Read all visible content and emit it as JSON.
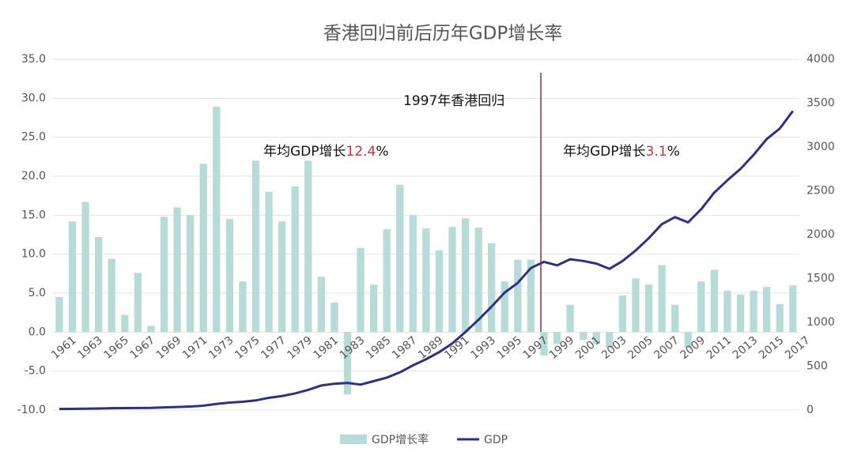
{
  "chart_data": {
    "type": "bar_line",
    "title": "香港回归前后历年GDP增长率",
    "categories": [
      "1961",
      null,
      "1963",
      null,
      "1965",
      null,
      "1967",
      null,
      "1969",
      null,
      "1971",
      null,
      "1973",
      null,
      "1975",
      null,
      "1977",
      null,
      "1979",
      null,
      "1981",
      null,
      "1983",
      null,
      "1985",
      null,
      "1987",
      null,
      "1989",
      null,
      "1991",
      null,
      "1993",
      null,
      "1995",
      null,
      "1997",
      null,
      "1999",
      null,
      "2001",
      null,
      "2003",
      null,
      "2005",
      null,
      "2007",
      null,
      "2009",
      null,
      "2011",
      null,
      "2013",
      null,
      "2015",
      null,
      "2017"
    ],
    "series": [
      {
        "name": "GDP增长率",
        "type": "bar",
        "color": "#b7dbd7",
        "values": [
          4.5,
          14.2,
          16.7,
          12.2,
          9.4,
          2.2,
          7.6,
          0.8,
          14.8,
          16.0,
          15.0,
          21.6,
          28.9,
          14.5,
          6.5,
          22.0,
          18.0,
          14.2,
          18.7,
          22.0,
          7.1,
          3.8,
          -8.0,
          10.8,
          6.1,
          13.2,
          18.9,
          15.0,
          13.3,
          10.5,
          13.5,
          14.6,
          13.4,
          11.4,
          6.5,
          9.3,
          9.3,
          -3.0,
          -1.5,
          3.5,
          -1.0,
          -1.5,
          -2.0,
          4.7,
          6.9,
          6.1,
          8.6,
          3.5,
          -2.0,
          6.5,
          8.0,
          5.3,
          4.8,
          5.3,
          5.8,
          3.6,
          6.0
        ]
      },
      {
        "name": "GDP",
        "type": "line",
        "axis": "y2",
        "color": "#2e3182",
        "values": [
          12,
          14,
          16,
          18,
          21,
          22,
          24,
          25,
          30,
          35,
          40,
          50,
          70,
          85,
          95,
          110,
          140,
          160,
          190,
          230,
          280,
          300,
          310,
          290,
          330,
          370,
          430,
          510,
          580,
          660,
          760,
          890,
          1030,
          1180,
          1340,
          1450,
          1620,
          1690,
          1650,
          1720,
          1700,
          1670,
          1610,
          1700,
          1820,
          1960,
          2120,
          2200,
          2140,
          2290,
          2480,
          2620,
          2750,
          2910,
          3090,
          3210,
          3410
        ]
      }
    ],
    "ylim": [
      -10,
      35
    ],
    "yticks": [
      {
        "value": -10,
        "label": "-10.0"
      },
      {
        "value": -5,
        "label": "-5.0"
      },
      {
        "value": 0,
        "label": "0.0"
      },
      {
        "value": 5,
        "label": "5.0"
      },
      {
        "value": 10,
        "label": "10.0"
      },
      {
        "value": 15,
        "label": "15.0"
      },
      {
        "value": 20,
        "label": "20.0"
      },
      {
        "value": 25,
        "label": "25.0"
      },
      {
        "value": 30,
        "label": "30.0"
      },
      {
        "value": 35,
        "label": "35.0"
      }
    ],
    "y2lim": [
      0,
      4000
    ],
    "y2ticks": [
      0,
      500,
      1000,
      1500,
      2000,
      2500,
      3000,
      3500,
      4000
    ],
    "grid": true,
    "annotations": {
      "handover": "1997年香港回归",
      "before": {
        "prefix": "年均GDP增长",
        "value": "12.4",
        "suffix": "%"
      },
      "after": {
        "prefix": "年均GDP增长",
        "value": "3.1",
        "suffix": "%"
      }
    }
  }
}
